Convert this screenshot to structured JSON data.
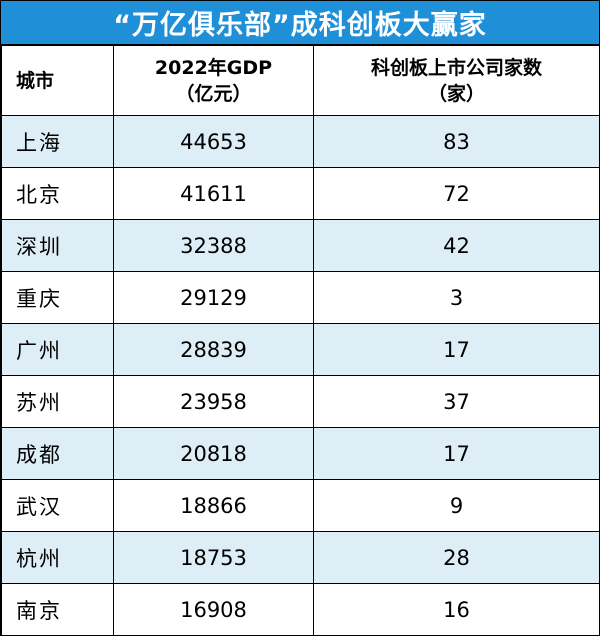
{
  "title": "“万亿俱乐部”成科创板大赢家",
  "headers": {
    "city": "城市",
    "gdp_line1": "2022年GDP",
    "gdp_line2": "（亿元）",
    "count_line1": "科创板上市公司家数",
    "count_line2": "（家）"
  },
  "rows": [
    {
      "city": "上海",
      "gdp": "44653",
      "count": "83"
    },
    {
      "city": "北京",
      "gdp": "41611",
      "count": "72"
    },
    {
      "city": "深圳",
      "gdp": "32388",
      "count": "42"
    },
    {
      "city": "重庆",
      "gdp": "29129",
      "count": "3"
    },
    {
      "city": "广州",
      "gdp": "28839",
      "count": "17"
    },
    {
      "city": "苏州",
      "gdp": "23958",
      "count": "37"
    },
    {
      "city": "成都",
      "gdp": "20818",
      "count": "17"
    },
    {
      "city": "武汉",
      "gdp": "18866",
      "count": "9"
    },
    {
      "city": "杭州",
      "gdp": "18753",
      "count": "28"
    },
    {
      "city": "南京",
      "gdp": "16908",
      "count": "16"
    }
  ],
  "colors": {
    "title_bg": "#1f8fd8",
    "row_shade": "#ddeef7"
  }
}
